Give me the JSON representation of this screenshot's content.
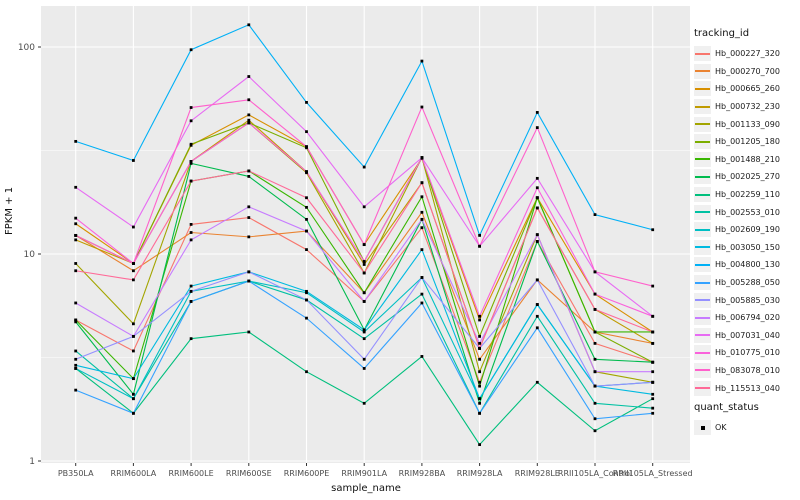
{
  "chart_data": {
    "type": "line",
    "title": "",
    "xlabel": "sample_name",
    "ylabel": "FPKM + 1",
    "y_scale": "log10",
    "ylim": [
      0.97,
      158
    ],
    "y_ticks": [
      1,
      10,
      100
    ],
    "y_minor_ticks": [
      3.162,
      31.62
    ],
    "grid": "on",
    "panel_bg": "#EBEBEB",
    "grid_color": "#FFFFFF",
    "point_color": "#000000",
    "point_shape": "square",
    "legend_position": "right",
    "categories": [
      "PB350LA",
      "RRIM600LA",
      "RRIM600LE",
      "RRIM600SE",
      "RRIM600PE",
      "RRIM901LA",
      "RRIM928BA",
      "RRIM928LA",
      "RRIM928LE",
      "RRII105LA_Control",
      "RRII105LA_Stressed"
    ],
    "series": [
      {
        "name": "Hb_000227_320",
        "color": "#F8766D",
        "values": [
          4.8,
          3.4,
          13.9,
          15.0,
          10.5,
          5.9,
          13.4,
          2.4,
          11.5,
          3.7,
          3.0
        ]
      },
      {
        "name": "Hb_000270_700",
        "color": "#EA8331",
        "values": [
          12.3,
          8.3,
          12.7,
          12.1,
          12.9,
          6.5,
          15.9,
          3.1,
          7.5,
          4.2,
          3.7
        ]
      },
      {
        "name": "Hb_000665_260",
        "color": "#D89000",
        "values": [
          14.0,
          9.0,
          33.5,
          47.0,
          33.0,
          11.1,
          29.0,
          4.8,
          18.7,
          6.4,
          4.2
        ]
      },
      {
        "name": "Hb_000732_230",
        "color": "#C09B00",
        "values": [
          11.7,
          9.0,
          28.0,
          44.3,
          25.0,
          8.9,
          22.1,
          3.5,
          16.7,
          5.4,
          3.7
        ]
      },
      {
        "name": "Hb_001133_090",
        "color": "#A3A500",
        "values": [
          9.0,
          4.6,
          28.0,
          43.0,
          24.7,
          8.1,
          29.2,
          2.7,
          12.4,
          2.7,
          2.4
        ]
      },
      {
        "name": "Hb_001205_180",
        "color": "#7CAE00",
        "values": [
          12.3,
          9.0,
          33.9,
          43.0,
          32.6,
          9.2,
          29.2,
          4.0,
          18.7,
          4.2,
          3.0
        ]
      },
      {
        "name": "Hb_001488_210",
        "color": "#39B600",
        "values": [
          4.8,
          2.5,
          22.5,
          25.2,
          16.8,
          6.5,
          18.9,
          2.3,
          18.7,
          4.2,
          4.2
        ]
      },
      {
        "name": "Hb_002025_270",
        "color": "#00BB4E",
        "values": [
          4.7,
          2.1,
          27.4,
          23.7,
          14.7,
          4.3,
          14.7,
          1.9,
          11.5,
          3.1,
          3.0
        ]
      },
      {
        "name": "Hb_002259_110",
        "color": "#00BF7D",
        "values": [
          2.8,
          1.7,
          3.9,
          4.2,
          2.7,
          1.9,
          3.2,
          1.2,
          2.4,
          1.4,
          2.0
        ]
      },
      {
        "name": "Hb_002553_010",
        "color": "#00C1A3",
        "values": [
          3.4,
          2.0,
          5.9,
          7.4,
          6.0,
          3.9,
          6.4,
          1.7,
          5.0,
          1.9,
          1.8
        ]
      },
      {
        "name": "Hb_002609_190",
        "color": "#00BFC4",
        "values": [
          2.8,
          2.0,
          6.6,
          7.4,
          6.5,
          4.2,
          7.7,
          2.0,
          5.7,
          2.3,
          2.4
        ]
      },
      {
        "name": "Hb_003050_150",
        "color": "#00BAE0",
        "values": [
          2.9,
          2.5,
          7.0,
          8.2,
          6.6,
          4.3,
          10.5,
          2.0,
          5.7,
          2.3,
          2.1
        ]
      },
      {
        "name": "Hb_004800_130",
        "color": "#00B0F6",
        "values": [
          35.0,
          28.3,
          97.0,
          128.0,
          54.0,
          26.3,
          85.5,
          12.3,
          48.3,
          15.5,
          13.1
        ]
      },
      {
        "name": "Hb_005288_050",
        "color": "#35A2FF",
        "values": [
          2.2,
          1.7,
          5.9,
          7.4,
          4.9,
          2.8,
          5.8,
          1.7,
          4.4,
          1.6,
          1.7
        ]
      },
      {
        "name": "Hb_005885_030",
        "color": "#9590FF",
        "values": [
          3.1,
          4.0,
          6.6,
          8.2,
          6.0,
          3.1,
          7.7,
          3.5,
          7.5,
          2.3,
          2.4
        ]
      },
      {
        "name": "Hb_006794_020",
        "color": "#C77CFF",
        "values": [
          5.8,
          4.0,
          11.7,
          16.9,
          12.9,
          5.9,
          14.7,
          3.7,
          12.4,
          2.7,
          2.7
        ]
      },
      {
        "name": "Hb_007031_040",
        "color": "#E76BF3",
        "values": [
          21.0,
          13.5,
          44.0,
          72.0,
          39.0,
          16.9,
          29.2,
          10.9,
          23.2,
          8.2,
          5.0
        ]
      },
      {
        "name": "Hb_010775_010",
        "color": "#FA62DB",
        "values": [
          14.9,
          9.0,
          28.0,
          43.0,
          25.0,
          9.2,
          29.2,
          5.0,
          20.9,
          6.4,
          5.0
        ]
      },
      {
        "name": "Hb_083078_010",
        "color": "#FF61CC",
        "values": [
          12.3,
          9.0,
          51.0,
          55.6,
          33.0,
          11.1,
          51.3,
          10.9,
          40.8,
          8.2,
          7.0
        ]
      },
      {
        "name": "Hb_115513_040",
        "color": "#FF6A98",
        "values": [
          8.3,
          7.5,
          22.5,
          25.2,
          18.7,
          8.1,
          22.1,
          3.5,
          16.7,
          5.4,
          4.2
        ]
      }
    ],
    "legend": {
      "title": "tracking_id"
    },
    "quant_legend": {
      "title": "quant_status",
      "items": [
        {
          "label": "OK"
        }
      ]
    }
  }
}
